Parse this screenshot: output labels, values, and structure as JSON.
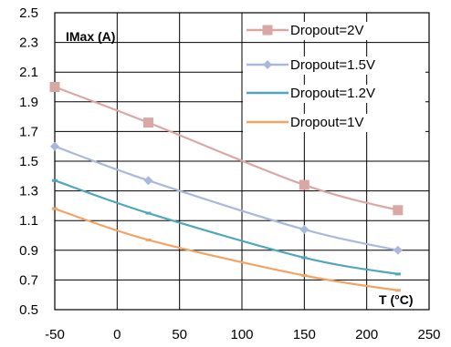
{
  "chart_data": {
    "type": "line",
    "title": "",
    "xlabel": "T (°C)",
    "ylabel": "IMax (A)",
    "xlim": [
      -50,
      250
    ],
    "ylim": [
      0.5,
      2.5
    ],
    "xticks": [
      -50,
      0,
      50,
      100,
      150,
      200,
      250
    ],
    "yticks": [
      0.5,
      0.7,
      0.9,
      1.1,
      1.3,
      1.5,
      1.7,
      1.9,
      2.1,
      2.3,
      2.5
    ],
    "ytick_labels": [
      "0.5",
      "0.7",
      "0.9",
      "1.1",
      "1.3",
      "1.5",
      "1.7",
      "1.9",
      "2.1",
      "2.3",
      "2.5"
    ],
    "grid": "both",
    "legend_position": "top-right",
    "series": [
      {
        "name": "Dropout=2V",
        "color": "#d9a8a4",
        "marker": "square",
        "x": [
          -50,
          25,
          150,
          225
        ],
        "y": [
          2.0,
          1.76,
          1.34,
          1.17
        ]
      },
      {
        "name": "Dropout=1.5V",
        "color": "#a9b8dc",
        "marker": "diamond",
        "x": [
          -50,
          25,
          150,
          225
        ],
        "y": [
          1.6,
          1.37,
          1.04,
          0.9
        ]
      },
      {
        "name": "Dropout=1.2V",
        "color": "#4fa6bd",
        "marker": "dash",
        "x": [
          -50,
          25,
          150,
          225
        ],
        "y": [
          1.37,
          1.15,
          0.85,
          0.74
        ]
      },
      {
        "name": "Dropout=1V",
        "color": "#f3a465",
        "marker": "dash",
        "x": [
          -50,
          25,
          150,
          225
        ],
        "y": [
          1.18,
          0.97,
          0.73,
          0.63
        ]
      }
    ]
  }
}
